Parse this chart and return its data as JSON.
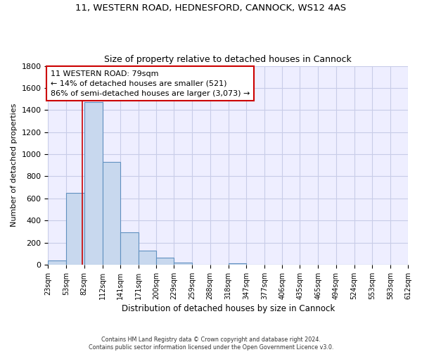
{
  "title_line1": "11, WESTERN ROAD, HEDNESFORD, CANNOCK, WS12 4AS",
  "title_line2": "Size of property relative to detached houses in Cannock",
  "xlabel": "Distribution of detached houses by size in Cannock",
  "ylabel": "Number of detached properties",
  "bar_edges": [
    23,
    53,
    82,
    112,
    141,
    171,
    200,
    229,
    259,
    288,
    318,
    347,
    377,
    406,
    435,
    465,
    494,
    524,
    553,
    583,
    612
  ],
  "bar_heights": [
    40,
    650,
    1470,
    930,
    295,
    130,
    65,
    20,
    0,
    0,
    15,
    0,
    0,
    0,
    0,
    0,
    0,
    0,
    0,
    0
  ],
  "bar_color": "#c8d8ee",
  "bar_edge_color": "#6090c0",
  "property_line_x": 79,
  "property_line_color": "#cc0000",
  "annotation_text": "11 WESTERN ROAD: 79sqm\n← 14% of detached houses are smaller (521)\n86% of semi-detached houses are larger (3,073) →",
  "annotation_box_color": "#cc0000",
  "ylim": [
    0,
    1800
  ],
  "yticks": [
    0,
    200,
    400,
    600,
    800,
    1000,
    1200,
    1400,
    1600,
    1800
  ],
  "grid_color": "#c8cce8",
  "background_color": "#eeeeff",
  "footer_text": "Contains HM Land Registry data © Crown copyright and database right 2024.\nContains public sector information licensed under the Open Government Licence v3.0.",
  "tick_labels": [
    "23sqm",
    "53sqm",
    "82sqm",
    "112sqm",
    "141sqm",
    "171sqm",
    "200sqm",
    "229sqm",
    "259sqm",
    "288sqm",
    "318sqm",
    "347sqm",
    "377sqm",
    "406sqm",
    "435sqm",
    "465sqm",
    "494sqm",
    "524sqm",
    "553sqm",
    "583sqm",
    "612sqm"
  ]
}
